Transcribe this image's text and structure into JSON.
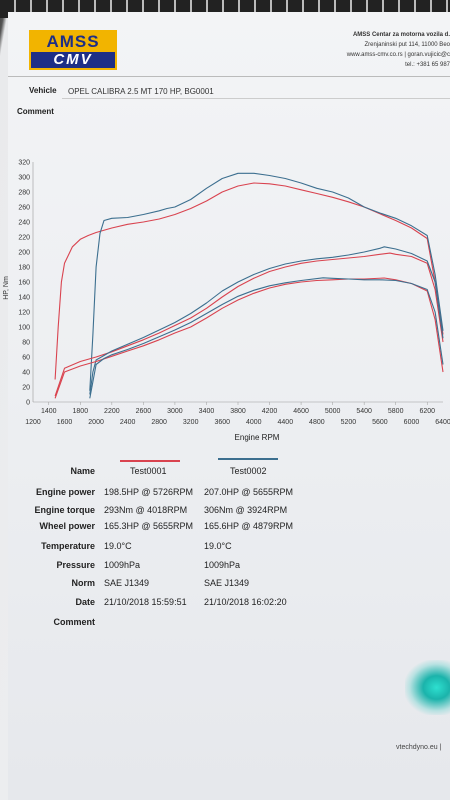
{
  "header": {
    "logo_top": "AMSS",
    "logo_bottom": "CMV",
    "company_name": "AMSS Centar za motorna vozila d.",
    "address": "Zrenjaninski put 114, 11000 Beo",
    "web": "www.amss-cmv.co.rs   |  goran.vujicic@c",
    "phone": "tel.: +381 65 987"
  },
  "vehicle": {
    "label": "Vehicle",
    "value": "OPEL CALIBRA 2.5 MT 170 HP, BG0001"
  },
  "comment_label": "Comment",
  "chart_data": {
    "type": "line",
    "ylabel": "HP, Nm",
    "xlabel": "Engine RPM",
    "ylim": [
      0,
      320
    ],
    "xlim": [
      1200,
      6400
    ],
    "y_ticks": [
      "0",
      "20",
      "40",
      "60",
      "80",
      "100",
      "120",
      "140",
      "160",
      "180",
      "200",
      "220",
      "240",
      "260",
      "280",
      "300",
      "320"
    ],
    "x_ticks_top": [
      "1400",
      "1800",
      "2200",
      "2600",
      "3000",
      "3400",
      "3800",
      "4200",
      "4600",
      "5000",
      "5400",
      "5800",
      "6200"
    ],
    "x_ticks_bottom": [
      "1200",
      "1600",
      "2000",
      "2400",
      "2800",
      "3200",
      "3600",
      "4000",
      "4400",
      "4800",
      "5200",
      "5600",
      "6000",
      "6400"
    ],
    "colors": {
      "test1": "#d9434f",
      "test2": "#3c6f8f"
    },
    "series": [
      {
        "key": "test1_torque",
        "x": [
          1480,
          1520,
          1560,
          1600,
          1700,
          1800,
          1900,
          2000,
          2200,
          2400,
          2600,
          2800,
          3000,
          3200,
          3400,
          3600,
          3800,
          4000,
          4200,
          4400,
          4600,
          4800,
          5000,
          5200,
          5400,
          5600,
          5800,
          6000,
          6200,
          6300,
          6400
        ],
        "y": [
          30,
          100,
          160,
          185,
          207,
          217,
          222,
          226,
          232,
          237,
          240,
          244,
          250,
          258,
          268,
          280,
          288,
          292,
          291,
          288,
          283,
          278,
          273,
          267,
          260,
          251,
          242,
          232,
          218,
          160,
          90
        ]
      },
      {
        "key": "test2_torque",
        "x": [
          1920,
          1960,
          2000,
          2050,
          2100,
          2200,
          2400,
          2600,
          2800,
          2900,
          3000,
          3200,
          3400,
          3600,
          3800,
          4000,
          4200,
          4400,
          4600,
          4800,
          5000,
          5200,
          5400,
          5600,
          5800,
          6000,
          6200,
          6300,
          6400
        ],
        "y": [
          15,
          90,
          180,
          225,
          242,
          245,
          246,
          250,
          255,
          258,
          260,
          270,
          285,
          298,
          305,
          305,
          302,
          298,
          292,
          285,
          280,
          272,
          260,
          252,
          245,
          235,
          222,
          170,
          95
        ]
      },
      {
        "key": "test1_power",
        "x": [
          1480,
          1600,
          1800,
          2000,
          2200,
          2400,
          2600,
          2800,
          3000,
          3200,
          3400,
          3600,
          3800,
          4000,
          4200,
          4400,
          4600,
          4800,
          5000,
          5200,
          5400,
          5600,
          5726,
          5800,
          6000,
          6200,
          6300,
          6400
        ],
        "y": [
          8,
          45,
          54,
          60,
          67,
          75,
          83,
          92,
          102,
          112,
          125,
          140,
          154,
          165,
          174,
          180,
          185,
          188,
          190,
          192,
          194,
          197,
          198.5,
          197,
          194,
          185,
          150,
          80
        ]
      },
      {
        "key": "test2_power",
        "x": [
          1920,
          1960,
          2000,
          2100,
          2200,
          2400,
          2600,
          2800,
          3000,
          3200,
          3400,
          3600,
          3800,
          4000,
          4200,
          4400,
          4600,
          4800,
          5000,
          5200,
          5400,
          5600,
          5655,
          5800,
          6000,
          6200,
          6300,
          6400
        ],
        "y": [
          10,
          40,
          56,
          62,
          68,
          77,
          86,
          96,
          106,
          118,
          132,
          148,
          160,
          170,
          178,
          184,
          188,
          191,
          193,
          196,
          200,
          205,
          207,
          204,
          198,
          188,
          160,
          85
        ]
      },
      {
        "key": "test1_wheel",
        "x": [
          1480,
          1600,
          1800,
          2000,
          2200,
          2400,
          2600,
          2800,
          3000,
          3200,
          3400,
          3600,
          3800,
          4000,
          4200,
          4400,
          4600,
          4800,
          5000,
          5200,
          5400,
          5655,
          5800,
          6000,
          6200,
          6300,
          6400
        ],
        "y": [
          5,
          40,
          48,
          54,
          61,
          68,
          75,
          83,
          92,
          100,
          112,
          125,
          136,
          145,
          152,
          157,
          160,
          162,
          163,
          164,
          164,
          165.3,
          163,
          158,
          148,
          110,
          40
        ]
      },
      {
        "key": "test2_wheel",
        "x": [
          1920,
          2000,
          2100,
          2200,
          2400,
          2600,
          2800,
          3000,
          3200,
          3400,
          3600,
          3800,
          4000,
          4200,
          4400,
          4600,
          4879,
          5000,
          5200,
          5400,
          5600,
          5800,
          6000,
          6200,
          6300,
          6400
        ],
        "y": [
          5,
          50,
          58,
          63,
          70,
          78,
          87,
          96,
          106,
          118,
          130,
          141,
          149,
          155,
          159,
          162,
          165.6,
          165,
          164,
          163,
          163,
          162,
          158,
          150,
          120,
          50
        ]
      }
    ]
  },
  "results": {
    "col1": "Test0001",
    "col2": "Test0002",
    "rows": [
      {
        "label": "Name",
        "v1": "",
        "v2": ""
      },
      {
        "label": "Engine power",
        "v1": "198.5HP @  5726RPM",
        "v2": "207.0HP @  5655RPM"
      },
      {
        "label": "Engine torque",
        "v1": "293Nm @ 4018RPM",
        "v2": "306Nm @ 3924RPM"
      },
      {
        "label": "Wheel power",
        "v1": "165.3HP @  5655RPM",
        "v2": "165.6HP @  4879RPM"
      },
      {
        "label": "Temperature",
        "v1": "19.0°C",
        "v2": "19.0°C"
      },
      {
        "label": "Pressure",
        "v1": "1009hPa",
        "v2": "1009hPa"
      },
      {
        "label": "Norm",
        "v1": "SAE J1349",
        "v2": "SAE J1349"
      },
      {
        "label": "Date",
        "v1": "21/10/2018 15:59:51",
        "v2": "21/10/2018 16:02:20"
      },
      {
        "label": "Comment",
        "v1": "",
        "v2": ""
      }
    ]
  },
  "footer": {
    "text": "vtechdyno.eu  |"
  }
}
